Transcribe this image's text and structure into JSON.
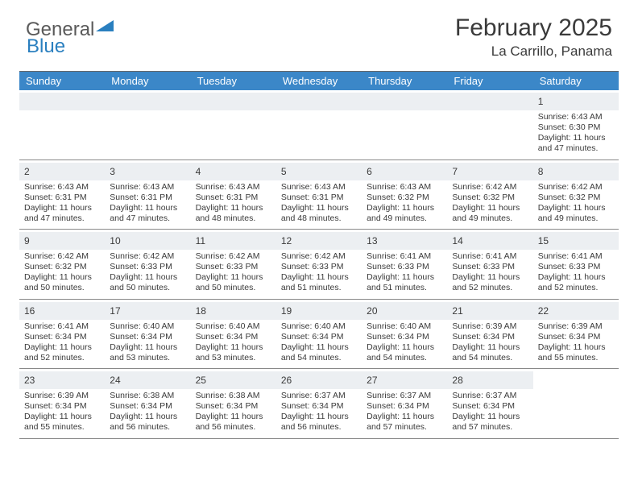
{
  "logo": {
    "text1": "General",
    "text2": "Blue"
  },
  "title": "February 2025",
  "location": "La Carrillo, Panama",
  "colors": {
    "header_bg": "#3b87c8",
    "header_text": "#ffffff",
    "daynum_bg": "#eceff2",
    "text": "#3a3a3a",
    "border": "#888888",
    "logo_gray": "#5a5a5a",
    "logo_blue": "#2a7fbf"
  },
  "day_names": [
    "Sunday",
    "Monday",
    "Tuesday",
    "Wednesday",
    "Thursday",
    "Friday",
    "Saturday"
  ],
  "weeks": [
    [
      {
        "n": "",
        "sr": "",
        "ss": "",
        "dl": ""
      },
      {
        "n": "",
        "sr": "",
        "ss": "",
        "dl": ""
      },
      {
        "n": "",
        "sr": "",
        "ss": "",
        "dl": ""
      },
      {
        "n": "",
        "sr": "",
        "ss": "",
        "dl": ""
      },
      {
        "n": "",
        "sr": "",
        "ss": "",
        "dl": ""
      },
      {
        "n": "",
        "sr": "",
        "ss": "",
        "dl": ""
      },
      {
        "n": "1",
        "sr": "Sunrise: 6:43 AM",
        "ss": "Sunset: 6:30 PM",
        "dl": "Daylight: 11 hours and 47 minutes."
      }
    ],
    [
      {
        "n": "2",
        "sr": "Sunrise: 6:43 AM",
        "ss": "Sunset: 6:31 PM",
        "dl": "Daylight: 11 hours and 47 minutes."
      },
      {
        "n": "3",
        "sr": "Sunrise: 6:43 AM",
        "ss": "Sunset: 6:31 PM",
        "dl": "Daylight: 11 hours and 47 minutes."
      },
      {
        "n": "4",
        "sr": "Sunrise: 6:43 AM",
        "ss": "Sunset: 6:31 PM",
        "dl": "Daylight: 11 hours and 48 minutes."
      },
      {
        "n": "5",
        "sr": "Sunrise: 6:43 AM",
        "ss": "Sunset: 6:31 PM",
        "dl": "Daylight: 11 hours and 48 minutes."
      },
      {
        "n": "6",
        "sr": "Sunrise: 6:43 AM",
        "ss": "Sunset: 6:32 PM",
        "dl": "Daylight: 11 hours and 49 minutes."
      },
      {
        "n": "7",
        "sr": "Sunrise: 6:42 AM",
        "ss": "Sunset: 6:32 PM",
        "dl": "Daylight: 11 hours and 49 minutes."
      },
      {
        "n": "8",
        "sr": "Sunrise: 6:42 AM",
        "ss": "Sunset: 6:32 PM",
        "dl": "Daylight: 11 hours and 49 minutes."
      }
    ],
    [
      {
        "n": "9",
        "sr": "Sunrise: 6:42 AM",
        "ss": "Sunset: 6:32 PM",
        "dl": "Daylight: 11 hours and 50 minutes."
      },
      {
        "n": "10",
        "sr": "Sunrise: 6:42 AM",
        "ss": "Sunset: 6:33 PM",
        "dl": "Daylight: 11 hours and 50 minutes."
      },
      {
        "n": "11",
        "sr": "Sunrise: 6:42 AM",
        "ss": "Sunset: 6:33 PM",
        "dl": "Daylight: 11 hours and 50 minutes."
      },
      {
        "n": "12",
        "sr": "Sunrise: 6:42 AM",
        "ss": "Sunset: 6:33 PM",
        "dl": "Daylight: 11 hours and 51 minutes."
      },
      {
        "n": "13",
        "sr": "Sunrise: 6:41 AM",
        "ss": "Sunset: 6:33 PM",
        "dl": "Daylight: 11 hours and 51 minutes."
      },
      {
        "n": "14",
        "sr": "Sunrise: 6:41 AM",
        "ss": "Sunset: 6:33 PM",
        "dl": "Daylight: 11 hours and 52 minutes."
      },
      {
        "n": "15",
        "sr": "Sunrise: 6:41 AM",
        "ss": "Sunset: 6:33 PM",
        "dl": "Daylight: 11 hours and 52 minutes."
      }
    ],
    [
      {
        "n": "16",
        "sr": "Sunrise: 6:41 AM",
        "ss": "Sunset: 6:34 PM",
        "dl": "Daylight: 11 hours and 52 minutes."
      },
      {
        "n": "17",
        "sr": "Sunrise: 6:40 AM",
        "ss": "Sunset: 6:34 PM",
        "dl": "Daylight: 11 hours and 53 minutes."
      },
      {
        "n": "18",
        "sr": "Sunrise: 6:40 AM",
        "ss": "Sunset: 6:34 PM",
        "dl": "Daylight: 11 hours and 53 minutes."
      },
      {
        "n": "19",
        "sr": "Sunrise: 6:40 AM",
        "ss": "Sunset: 6:34 PM",
        "dl": "Daylight: 11 hours and 54 minutes."
      },
      {
        "n": "20",
        "sr": "Sunrise: 6:40 AM",
        "ss": "Sunset: 6:34 PM",
        "dl": "Daylight: 11 hours and 54 minutes."
      },
      {
        "n": "21",
        "sr": "Sunrise: 6:39 AM",
        "ss": "Sunset: 6:34 PM",
        "dl": "Daylight: 11 hours and 54 minutes."
      },
      {
        "n": "22",
        "sr": "Sunrise: 6:39 AM",
        "ss": "Sunset: 6:34 PM",
        "dl": "Daylight: 11 hours and 55 minutes."
      }
    ],
    [
      {
        "n": "23",
        "sr": "Sunrise: 6:39 AM",
        "ss": "Sunset: 6:34 PM",
        "dl": "Daylight: 11 hours and 55 minutes."
      },
      {
        "n": "24",
        "sr": "Sunrise: 6:38 AM",
        "ss": "Sunset: 6:34 PM",
        "dl": "Daylight: 11 hours and 56 minutes."
      },
      {
        "n": "25",
        "sr": "Sunrise: 6:38 AM",
        "ss": "Sunset: 6:34 PM",
        "dl": "Daylight: 11 hours and 56 minutes."
      },
      {
        "n": "26",
        "sr": "Sunrise: 6:37 AM",
        "ss": "Sunset: 6:34 PM",
        "dl": "Daylight: 11 hours and 56 minutes."
      },
      {
        "n": "27",
        "sr": "Sunrise: 6:37 AM",
        "ss": "Sunset: 6:34 PM",
        "dl": "Daylight: 11 hours and 57 minutes."
      },
      {
        "n": "28",
        "sr": "Sunrise: 6:37 AM",
        "ss": "Sunset: 6:34 PM",
        "dl": "Daylight: 11 hours and 57 minutes."
      },
      {
        "n": "",
        "sr": "",
        "ss": "",
        "dl": ""
      }
    ]
  ]
}
